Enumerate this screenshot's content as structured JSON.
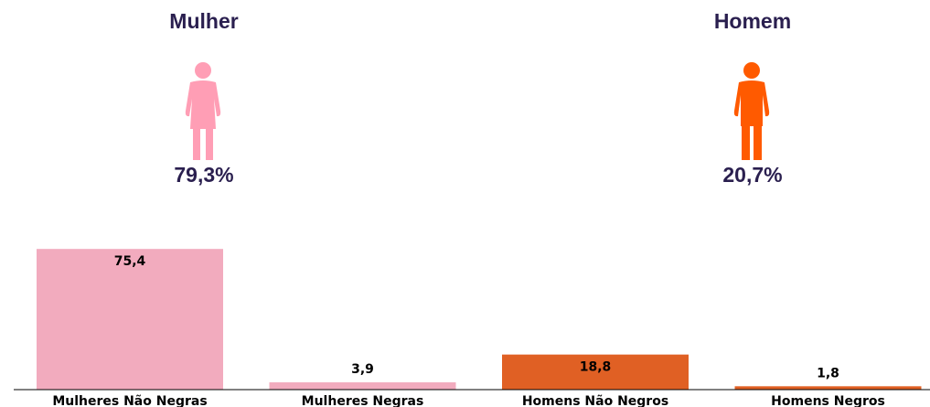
{
  "panels": {
    "female": {
      "title": "Mulher",
      "percent": "79,3%",
      "icon": "woman-icon",
      "color": "#ff9eb5"
    },
    "male": {
      "title": "Homem",
      "percent": "20,7%",
      "icon": "man-icon",
      "color": "#ff5a00"
    }
  },
  "chart_data": {
    "type": "bar",
    "categories": [
      "Mulheres Não Negras",
      "Mulheres Negras",
      "Homens Não Negros",
      "Homens Negros"
    ],
    "values": [
      75.4,
      3.9,
      18.8,
      1.8
    ],
    "value_labels": [
      "75,4",
      "3,9",
      "18,8",
      "1,8"
    ],
    "colors": [
      "#f2abbe",
      "#f2abbe",
      "#e06024",
      "#e06024"
    ],
    "ylim": [
      0,
      100
    ],
    "grid": false,
    "title": "",
    "xlabel": "",
    "ylabel": ""
  }
}
